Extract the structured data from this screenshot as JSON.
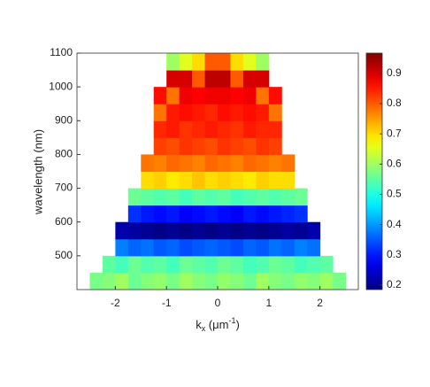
{
  "chart_data": {
    "type": "heatmap",
    "ylabel": "wavelength (nm)",
    "xlabel": [
      "k",
      "x",
      " (μm",
      "-1",
      ")"
    ],
    "colormap": "jet",
    "xlim": [
      -2.75,
      2.75
    ],
    "xticks": [
      -2,
      -1,
      0,
      1,
      2
    ],
    "ylim": [
      400,
      1100
    ],
    "yticks": [
      500,
      600,
      700,
      800,
      900,
      1000,
      1100
    ],
    "zlim": [
      0.185,
      0.967
    ],
    "zticks": [
      0.2,
      0.3,
      0.4,
      0.5,
      0.6,
      0.7,
      0.8,
      0.9
    ],
    "xbins": [
      -2.75,
      -2.5,
      -2.25,
      -2,
      -1.75,
      -1.5,
      -1.25,
      -1,
      -0.75,
      -0.5,
      -0.25,
      0,
      0.25,
      0.5,
      0.75,
      1,
      1.25,
      1.5,
      1.75,
      2,
      2.25,
      2.5,
      2.75
    ],
    "ybins": [
      400,
      450,
      500,
      550,
      600,
      650,
      700,
      750,
      800,
      850,
      900,
      950,
      1000,
      1050,
      1100
    ],
    "values": [
      [
        null,
        0.57,
        0.58,
        0.6,
        0.56,
        0.58,
        0.59,
        0.57,
        0.6,
        0.58,
        0.57,
        0.59,
        0.58,
        0.56,
        0.6,
        0.58,
        0.57,
        0.59,
        0.58,
        0.6,
        0.57,
        null
      ],
      [
        null,
        null,
        0.55,
        0.53,
        0.56,
        0.54,
        0.55,
        0.53,
        0.56,
        0.55,
        0.54,
        0.56,
        0.55,
        0.53,
        0.54,
        0.56,
        0.55,
        0.53,
        0.54,
        0.55,
        null,
        null
      ],
      [
        null,
        null,
        null,
        0.38,
        0.36,
        0.37,
        0.35,
        0.36,
        0.34,
        0.35,
        0.36,
        0.35,
        0.34,
        0.36,
        0.35,
        0.37,
        0.36,
        0.38,
        0.37,
        null,
        null,
        null
      ],
      [
        null,
        null,
        null,
        0.22,
        0.21,
        0.2,
        0.19,
        0.2,
        0.19,
        0.2,
        0.19,
        0.2,
        0.19,
        0.2,
        0.19,
        0.2,
        0.21,
        0.2,
        0.22,
        null,
        null,
        null
      ],
      [
        null,
        null,
        null,
        null,
        0.32,
        0.3,
        0.29,
        0.3,
        0.28,
        0.29,
        0.3,
        0.29,
        0.28,
        0.3,
        0.29,
        0.3,
        0.31,
        0.32,
        null,
        null,
        null,
        null
      ],
      [
        null,
        null,
        null,
        null,
        0.56,
        0.55,
        0.54,
        0.55,
        0.53,
        0.55,
        0.54,
        0.55,
        0.53,
        0.54,
        0.55,
        0.54,
        0.55,
        0.56,
        null,
        null,
        null,
        null
      ],
      [
        null,
        null,
        null,
        null,
        null,
        0.7,
        0.71,
        0.69,
        0.7,
        0.72,
        0.7,
        0.71,
        0.7,
        0.69,
        0.71,
        0.7,
        0.7,
        null,
        null,
        null,
        null,
        null
      ],
      [
        null,
        null,
        null,
        null,
        null,
        0.78,
        0.77,
        0.79,
        0.78,
        0.77,
        0.79,
        0.78,
        0.77,
        0.79,
        0.78,
        0.77,
        0.78,
        null,
        null,
        null,
        null,
        null
      ],
      [
        null,
        null,
        null,
        null,
        null,
        null,
        0.82,
        0.81,
        0.83,
        0.82,
        0.81,
        0.83,
        0.82,
        0.81,
        0.83,
        0.82,
        null,
        null,
        null,
        null,
        null,
        null
      ],
      [
        null,
        null,
        null,
        null,
        null,
        null,
        0.84,
        0.85,
        0.83,
        0.84,
        0.85,
        0.84,
        0.83,
        0.85,
        0.84,
        0.84,
        null,
        null,
        null,
        null,
        null,
        null
      ],
      [
        null,
        null,
        null,
        null,
        null,
        null,
        0.78,
        0.85,
        0.86,
        0.85,
        0.84,
        0.86,
        0.85,
        0.86,
        0.85,
        0.78,
        null,
        null,
        null,
        null,
        null,
        null
      ],
      [
        null,
        null,
        null,
        null,
        null,
        null,
        0.86,
        0.78,
        0.88,
        0.87,
        0.88,
        0.88,
        0.87,
        0.88,
        0.78,
        0.86,
        null,
        null,
        null,
        null,
        null,
        null
      ],
      [
        null,
        null,
        null,
        null,
        null,
        null,
        null,
        0.9,
        0.9,
        0.8,
        0.92,
        0.92,
        0.8,
        0.9,
        0.9,
        null,
        null,
        null,
        null,
        null,
        null,
        null
      ],
      [
        null,
        null,
        null,
        null,
        null,
        null,
        null,
        0.6,
        0.65,
        0.7,
        0.8,
        0.8,
        0.7,
        0.65,
        0.6,
        null,
        null,
        null,
        null,
        null,
        null,
        null
      ]
    ]
  }
}
